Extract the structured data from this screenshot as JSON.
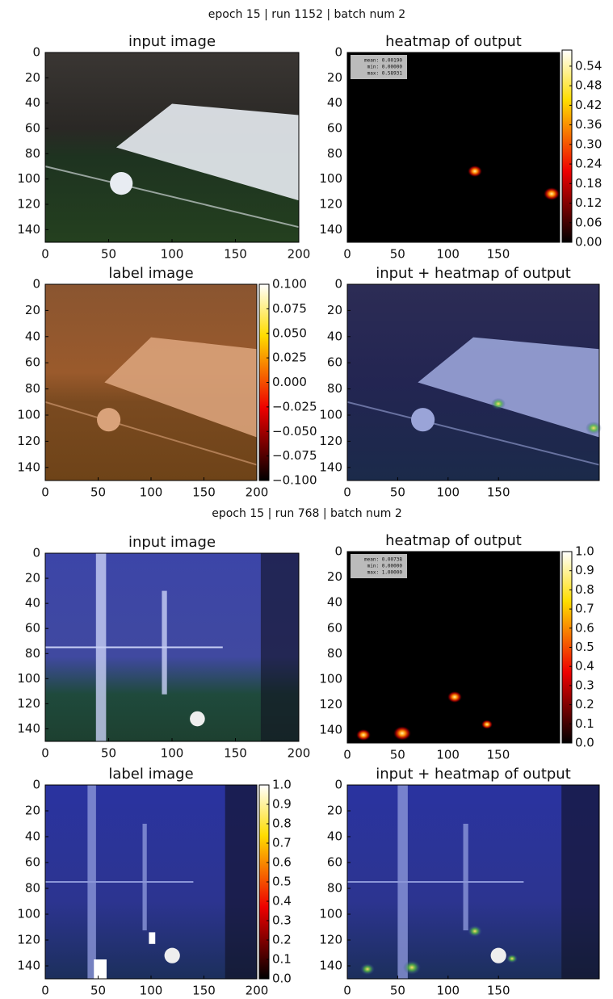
{
  "chart_data": [
    {
      "type": "image-grid",
      "title": "epoch 15 | run 1152 | batch num 2",
      "panels": [
        {
          "type": "image",
          "title": "input image",
          "xlim": [
            0,
            200
          ],
          "ylim": [
            150,
            0
          ],
          "xticks": [
            0,
            50,
            100,
            150,
            200
          ],
          "yticks": [
            0,
            20,
            40,
            60,
            80,
            100,
            120,
            140
          ]
        },
        {
          "type": "image",
          "title": "heatmap of output",
          "xlim": [
            0,
            211
          ],
          "ylim": [
            150,
            0
          ],
          "xticks": [
            0,
            50,
            100,
            150
          ],
          "yticks": [
            0,
            20,
            40,
            60,
            80,
            100,
            120,
            140
          ],
          "stats": [
            "mean: 0.00190",
            "min: 0.00000",
            "max: 0.58931"
          ],
          "colorbar": {
            "lim": [
              0,
              0.58931
            ],
            "ticks": [
              {
                "value": 0,
                "label": "0.00"
              },
              0.06,
              0.12,
              0.18,
              0.24,
              {
                "value": 0.3,
                "label": "0.30"
              },
              0.36,
              0.42,
              0.48,
              0.54
            ]
          }
        },
        {
          "type": "image",
          "title": "label image",
          "xlim": [
            0,
            200
          ],
          "ylim": [
            150,
            0
          ],
          "xticks": [
            0,
            50,
            100,
            150,
            200
          ],
          "yticks": [
            0,
            20,
            40,
            60,
            80,
            100,
            120,
            140
          ],
          "colorbar": {
            "lim": [
              -0.1,
              0.1
            ],
            "ticks": [
              {
                "value": 0.1,
                "label": "0.100"
              },
              0.075,
              {
                "value": 0.05,
                "label": "0.050"
              },
              0.025,
              {
                "value": 0,
                "label": "0.000"
              },
              {
                "value": -0.025,
                "label": "−0.025"
              },
              {
                "value": -0.05,
                "label": "−0.050"
              },
              {
                "value": -0.075,
                "label": "−0.075"
              },
              {
                "value": -0.1,
                "label": "−0.100"
              }
            ]
          }
        },
        {
          "type": "image",
          "title": "input + heatmap of output",
          "xlim": [
            0,
            250
          ],
          "ylim": [
            150,
            0
          ],
          "xticks": [
            0,
            50,
            100,
            150
          ],
          "yticks": [
            0,
            20,
            40,
            60,
            80,
            100,
            120,
            140
          ]
        }
      ]
    },
    {
      "type": "image-grid",
      "title": "epoch 15 | run 768 | batch num 2",
      "panels": [
        {
          "type": "image",
          "title": "input image",
          "xlim": [
            0,
            200
          ],
          "ylim": [
            150,
            0
          ],
          "xticks": [
            0,
            50,
            100,
            150,
            200
          ],
          "yticks": [
            0,
            20,
            40,
            60,
            80,
            100,
            120,
            140
          ]
        },
        {
          "type": "image",
          "title": "heatmap of output",
          "xlim": [
            0,
            211
          ],
          "ylim": [
            150,
            0
          ],
          "xticks": [
            0,
            50,
            100,
            150
          ],
          "yticks": [
            0,
            20,
            40,
            60,
            80,
            100,
            120,
            140
          ],
          "stats": [
            "mean: 0.00738",
            "min: 0.00000",
            "max: 1.00000"
          ],
          "colorbar": {
            "lim": [
              0,
              1
            ],
            "ticks": [
              {
                "value": 1,
                "label": "1.0"
              },
              0.9,
              0.8,
              0.7,
              0.6,
              0.5,
              0.4,
              0.3,
              0.2,
              0.1,
              {
                "value": 0,
                "label": "0.0"
              }
            ]
          }
        },
        {
          "type": "image",
          "title": "label image",
          "xlim": [
            0,
            200
          ],
          "ylim": [
            150,
            0
          ],
          "xticks": [
            0,
            50,
            100,
            150,
            200
          ],
          "yticks": [
            0,
            20,
            40,
            60,
            80,
            100,
            120,
            140
          ],
          "colorbar": {
            "lim": [
              0,
              1
            ],
            "ticks": [
              {
                "value": 1,
                "label": "1.0"
              },
              0.9,
              0.8,
              0.7,
              0.6,
              0.5,
              0.4,
              0.3,
              0.2,
              0.1,
              {
                "value": 0,
                "label": "0.0"
              }
            ]
          }
        },
        {
          "type": "image",
          "title": "input + heatmap of output",
          "xlim": [
            0,
            250
          ],
          "ylim": [
            150,
            0
          ],
          "xticks": [
            0,
            50,
            100,
            150
          ],
          "yticks": [
            0,
            20,
            40,
            60,
            80,
            100,
            120,
            140
          ]
        }
      ]
    }
  ]
}
